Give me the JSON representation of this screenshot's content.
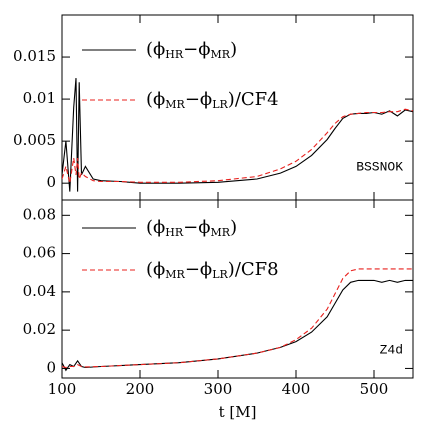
{
  "chart_data": [
    {
      "type": "line",
      "annotation": "BSSNOK",
      "x": [
        100,
        105,
        110,
        115,
        118,
        120,
        122,
        125,
        130,
        140,
        150,
        175,
        200,
        250,
        300,
        350,
        380,
        400,
        420,
        440,
        450,
        460,
        470,
        480,
        490,
        500,
        510,
        520,
        530,
        540,
        550
      ],
      "series": [
        {
          "name": "(ϕHR−ϕMR)",
          "color": "#000000",
          "dash": false,
          "values": [
            0.001,
            0.005,
            -0.001,
            0.009,
            0.0125,
            -0.001,
            0.012,
            0.001,
            0.002,
            0.0005,
            0.0003,
            0.0002,
            0,
            0,
            0.0001,
            0.0005,
            0.0012,
            0.002,
            0.0033,
            0.0052,
            0.0065,
            0.0077,
            0.0082,
            0.0083,
            0.0083,
            0.0084,
            0.0082,
            0.0086,
            0.008,
            0.0087,
            0.0085
          ]
        },
        {
          "name": "(ϕMR−ϕLR)/CF4",
          "color": "#e8211e",
          "dash": true,
          "values": [
            0.0005,
            0.002,
            0,
            0.003,
            0.001,
            0.003,
            0.0005,
            0.0012,
            0.0008,
            0.0003,
            0.0002,
            0.0002,
            0.0001,
            0.0001,
            0.0003,
            0.0008,
            0.0017,
            0.0026,
            0.004,
            0.006,
            0.0071,
            0.0079,
            0.0082,
            0.0083,
            0.0084,
            0.0084,
            0.0084,
            0.0085,
            0.0085,
            0.0088,
            0.0086
          ]
        }
      ],
      "xlim": [
        100,
        550
      ],
      "xticks": [
        100,
        200,
        300,
        400,
        500
      ],
      "ylim": [
        -0.002,
        0.02
      ],
      "yticks": [
        0,
        0.005,
        0.01,
        0.015
      ]
    },
    {
      "type": "line",
      "annotation": "Z4d",
      "xlabel": "t [M]",
      "x": [
        100,
        105,
        110,
        115,
        120,
        125,
        130,
        150,
        200,
        250,
        300,
        350,
        380,
        400,
        420,
        440,
        450,
        460,
        470,
        480,
        490,
        500,
        510,
        520,
        530,
        540,
        550
      ],
      "series": [
        {
          "name": "(ϕHR−ϕMR)",
          "color": "#000000",
          "dash": false,
          "values": [
            0.003,
            -0.001,
            0.002,
            0.001,
            0.004,
            0.001,
            0.0005,
            0.001,
            0.002,
            0.003,
            0.005,
            0.008,
            0.011,
            0.014,
            0.019,
            0.027,
            0.034,
            0.041,
            0.045,
            0.046,
            0.046,
            0.046,
            0.045,
            0.046,
            0.045,
            0.046,
            0.046
          ]
        },
        {
          "name": "(ϕMR−ϕLR)/CF8",
          "color": "#e8211e",
          "dash": true,
          "values": [
            0.001,
            0.0005,
            0.001,
            0.001,
            0.002,
            0.001,
            0.0008,
            0.001,
            0.002,
            0.003,
            0.005,
            0.008,
            0.011,
            0.015,
            0.021,
            0.031,
            0.039,
            0.047,
            0.051,
            0.052,
            0.052,
            0.052,
            0.052,
            0.052,
            0.052,
            0.052,
            0.052
          ]
        }
      ],
      "xlim": [
        100,
        550
      ],
      "xticks": [
        100,
        200,
        300,
        400,
        500
      ],
      "ylim": [
        -0.005,
        0.088
      ],
      "yticks": [
        0,
        0.02,
        0.04,
        0.06,
        0.08
      ]
    }
  ]
}
